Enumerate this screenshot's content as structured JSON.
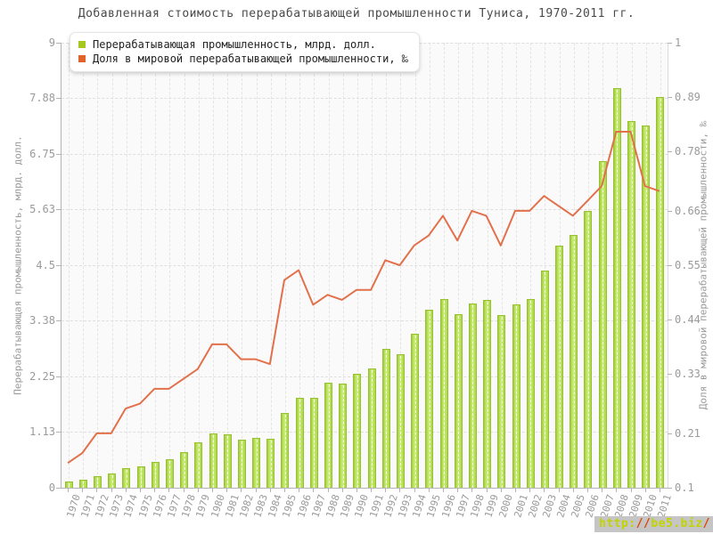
{
  "title": "Добавленная стоимость перерабатывающей промышленности Туниса, 1970-2011 гг.",
  "watermark": {
    "part1": "http:",
    "part2": "//",
    "part3": "be5.biz",
    "part4": "/"
  },
  "chart_data": {
    "type": "bar+line",
    "title": "Добавленная стоимость перерабатывающей промышленности Туниса, 1970-2011 гг.",
    "categories": [
      "1970",
      "1971",
      "1972",
      "1973",
      "1974",
      "1975",
      "1976",
      "1977",
      "1978",
      "1979",
      "1980",
      "1981",
      "1982",
      "1983",
      "1984",
      "1985",
      "1986",
      "1987",
      "1988",
      "1989",
      "1990",
      "1991",
      "1992",
      "1993",
      "1994",
      "1995",
      "1996",
      "1997",
      "1998",
      "1999",
      "2000",
      "2001",
      "2002",
      "2003",
      "2004",
      "2005",
      "2006",
      "2007",
      "2008",
      "2009",
      "2010",
      "2011"
    ],
    "series": [
      {
        "name": "Перерабатывающая промышленность, млрд. долл.",
        "type": "bar",
        "axis": "left",
        "color": "#b5e052",
        "border_color": "#97c133",
        "legend_square": "#a6c81e",
        "values": [
          0.13,
          0.16,
          0.24,
          0.29,
          0.39,
          0.43,
          0.52,
          0.58,
          0.72,
          0.92,
          1.09,
          1.08,
          0.97,
          1.0,
          0.99,
          1.51,
          1.81,
          1.81,
          2.12,
          2.11,
          2.31,
          2.41,
          2.81,
          2.7,
          3.11,
          3.6,
          3.81,
          3.51,
          3.72,
          3.8,
          3.5,
          3.71,
          3.81,
          4.39,
          4.89,
          5.11,
          5.59,
          6.6,
          8.09,
          7.41,
          7.32,
          7.9
        ]
      },
      {
        "name": "Доля в мировой перерабатывающей промышленности, ‰",
        "type": "line",
        "axis": "right",
        "color": "#e2714b",
        "legend_square": "#e2632a",
        "values": [
          0.15,
          0.17,
          0.21,
          0.21,
          0.26,
          0.27,
          0.3,
          0.3,
          0.32,
          0.34,
          0.39,
          0.39,
          0.36,
          0.36,
          0.35,
          0.52,
          0.54,
          0.47,
          0.49,
          0.48,
          0.5,
          0.5,
          0.56,
          0.55,
          0.59,
          0.61,
          0.65,
          0.6,
          0.66,
          0.65,
          0.59,
          0.66,
          0.66,
          0.69,
          0.67,
          0.65,
          0.68,
          0.71,
          0.82,
          0.82,
          0.71,
          0.7
        ]
      }
    ],
    "left_axis": {
      "label": "Перерабатывающая промышленность, млрд. долл.",
      "min": 0,
      "max": 9,
      "ticks": [
        "0",
        "1.13",
        "2.25",
        "3.38",
        "4.5",
        "5.63",
        "6.75",
        "7.88",
        "9"
      ]
    },
    "right_axis": {
      "label": "Доля в мировой перерабатывающей промышленности, ‰",
      "min": 0.1,
      "max": 1,
      "ticks": [
        "0.1",
        "0.21",
        "0.33",
        "0.44",
        "0.55",
        "0.66",
        "0.78",
        "0.89",
        "1"
      ]
    },
    "grid": true,
    "legend_position": "top-left"
  }
}
